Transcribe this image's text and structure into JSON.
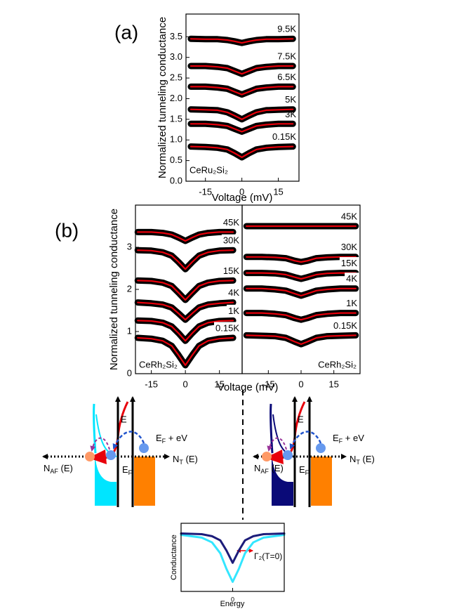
{
  "panel_labels": [
    "(a)",
    "(b)"
  ],
  "chart_data": [
    {
      "type": "line",
      "ylabel": "Normalized tunneling conductance",
      "xlabel": "Voltage (mV)",
      "annotation": "CeRu₂Si₂",
      "xlim": [
        -23,
        23.5
      ],
      "ylim": [
        0,
        4.05
      ],
      "xticks": [
        -15,
        0,
        15
      ],
      "yticks": [
        {
          "value": 0,
          "label": "0.0"
        },
        0.5,
        {
          "value": 1,
          "label": "1.0"
        },
        1.5,
        {
          "value": 2,
          "label": "2.0"
        },
        2.5,
        {
          "value": 3,
          "label": "3.0"
        },
        3.5
      ],
      "fit_color": "#e8000b",
      "x": [
        -21,
        -15,
        -10,
        -6,
        -3,
        0,
        3,
        6,
        10,
        15,
        21
      ],
      "series": [
        {
          "name": "9.5K",
          "color": "#000000",
          "values": [
            3.45,
            3.44,
            3.44,
            3.42,
            3.39,
            3.35,
            3.39,
            3.42,
            3.44,
            3.44,
            3.45
          ]
        },
        {
          "name": "7.5K",
          "color": "#000000",
          "values": [
            2.79,
            2.79,
            2.77,
            2.74,
            2.67,
            2.6,
            2.67,
            2.74,
            2.77,
            2.79,
            2.79
          ]
        },
        {
          "name": "6.5K",
          "color": "#000000",
          "values": [
            2.29,
            2.29,
            2.27,
            2.24,
            2.17,
            2.1,
            2.17,
            2.24,
            2.27,
            2.29,
            2.29
          ]
        },
        {
          "name": "5K",
          "color": "#000000",
          "values": [
            1.74,
            1.73,
            1.72,
            1.67,
            1.59,
            1.5,
            1.59,
            1.67,
            1.72,
            1.73,
            1.74
          ]
        },
        {
          "name": "3K",
          "color": "#000000",
          "values": [
            1.39,
            1.39,
            1.37,
            1.34,
            1.27,
            1.2,
            1.27,
            1.34,
            1.37,
            1.39,
            1.39
          ]
        },
        {
          "name": "0.15K",
          "color": "#000000",
          "values": [
            0.84,
            0.83,
            0.81,
            0.77,
            0.68,
            0.58,
            0.68,
            0.77,
            0.81,
            0.83,
            0.84
          ]
        }
      ]
    },
    {
      "type": "line",
      "ylabel": "Normalized tunneling conductance",
      "xlabel": "Voltage (mV)",
      "annotation": "CeRh₂Si₂",
      "xlim": [
        -22,
        25
      ],
      "ylim": [
        0,
        4
      ],
      "xticks": [
        -15,
        0,
        15
      ],
      "yticks": [
        0,
        1,
        2,
        3
      ],
      "fit_color": "#e8000b",
      "x": [
        -21,
        -15,
        -10,
        -6,
        -3,
        0,
        3,
        6,
        10,
        15,
        21
      ],
      "series": [
        {
          "name": "45K",
          "color": "#000000",
          "values": [
            3.36,
            3.36,
            3.34,
            3.3,
            3.23,
            3.15,
            3.23,
            3.3,
            3.34,
            3.36,
            3.36
          ]
        },
        {
          "name": "30K",
          "color": "#000000",
          "values": [
            2.93,
            2.92,
            2.88,
            2.8,
            2.65,
            2.48,
            2.65,
            2.8,
            2.88,
            2.92,
            2.93
          ]
        },
        {
          "name": "15K",
          "color": "#000000",
          "values": [
            2.21,
            2.2,
            2.16,
            2.08,
            1.92,
            1.75,
            1.92,
            2.08,
            2.16,
            2.2,
            2.21
          ]
        },
        {
          "name": "4K",
          "color": "#000000",
          "values": [
            1.69,
            1.67,
            1.64,
            1.57,
            1.43,
            1.28,
            1.43,
            1.57,
            1.64,
            1.67,
            1.69
          ]
        },
        {
          "name": "1K",
          "color": "#000000",
          "values": [
            1.26,
            1.25,
            1.21,
            1.12,
            0.96,
            0.78,
            0.96,
            1.12,
            1.21,
            1.25,
            1.26
          ]
        },
        {
          "name": "0.15K",
          "color": "#000000",
          "values": [
            0.85,
            0.83,
            0.78,
            0.66,
            0.44,
            0.2,
            0.44,
            0.66,
            0.78,
            0.83,
            0.85
          ]
        }
      ]
    },
    {
      "type": "line",
      "annotation": "CeRh₂Si₂",
      "xlim": [
        -27,
        27
      ],
      "ylim": [
        0,
        4
      ],
      "xticks": [
        -15,
        0,
        15
      ],
      "fit_color": "#e8000b",
      "x": [
        -25,
        -18,
        -12,
        -7,
        -3,
        0,
        3,
        7,
        12,
        18,
        25
      ],
      "series": [
        {
          "name": "45K",
          "color": "#000000",
          "values": [
            3.5,
            3.5,
            3.5,
            3.5,
            3.5,
            3.5,
            3.5,
            3.5,
            3.5,
            3.5,
            3.5
          ]
        },
        {
          "name": "30K",
          "color": "#000000",
          "values": [
            2.77,
            2.77,
            2.76,
            2.74,
            2.68,
            2.65,
            2.68,
            2.74,
            2.76,
            2.77,
            2.77
          ]
        },
        {
          "name": "15K",
          "color": "#000000",
          "values": [
            2.39,
            2.39,
            2.38,
            2.35,
            2.29,
            2.25,
            2.29,
            2.35,
            2.38,
            2.39,
            2.39
          ]
        },
        {
          "name": "4K",
          "color": "#000000",
          "values": [
            2.02,
            2.02,
            2.0,
            1.97,
            1.9,
            1.85,
            1.9,
            1.97,
            2.0,
            2.02,
            2.02
          ]
        },
        {
          "name": "1K",
          "color": "#000000",
          "values": [
            1.44,
            1.44,
            1.42,
            1.39,
            1.32,
            1.28,
            1.32,
            1.39,
            1.42,
            1.44,
            1.44
          ]
        },
        {
          "name": "0.15K",
          "color": "#000000",
          "values": [
            0.91,
            0.9,
            0.89,
            0.85,
            0.76,
            0.7,
            0.76,
            0.85,
            0.89,
            0.9,
            0.91
          ]
        }
      ]
    },
    {
      "type": "line",
      "ylabel": "Conductance",
      "xlabel": "Energy",
      "annotation": "Γ₂(T=0)",
      "xlim": [
        -5,
        5
      ],
      "ylim": [
        0,
        1
      ],
      "xticks": [
        0
      ],
      "x": [
        -5,
        -3,
        -2,
        -1.2,
        -0.6,
        0,
        0.6,
        1.2,
        2,
        3,
        5
      ],
      "series": [
        {
          "color": "#33e6ff",
          "values": [
            0.83,
            0.79,
            0.72,
            0.56,
            0.33,
            0.14,
            0.33,
            0.56,
            0.72,
            0.79,
            0.83
          ]
        },
        {
          "color": "#1c1c7a",
          "values": [
            0.85,
            0.84,
            0.81,
            0.75,
            0.6,
            0.42,
            0.6,
            0.75,
            0.81,
            0.84,
            0.85
          ]
        }
      ]
    }
  ],
  "diagrams": [
    {
      "E": "E",
      "EF_eV": {
        "main": "E",
        "sub": "F",
        "rest": " + eV"
      },
      "NT": {
        "main": "N",
        "sub": "T",
        "rest": " (E)"
      },
      "NAF": {
        "main": "N",
        "sub": "AF",
        "rest": " (E)"
      },
      "EF": {
        "main": "E",
        "sub": "F"
      }
    },
    {
      "E": "E",
      "EF_eV": {
        "main": "E",
        "sub": "F",
        "rest": " + eV"
      },
      "NT": {
        "main": "N",
        "sub": "T",
        "rest": " (E)"
      },
      "NAF": {
        "main": "N",
        "sub": "AF",
        "rest": " (E)"
      },
      "EF": {
        "main": "E",
        "sub": "F"
      }
    }
  ]
}
